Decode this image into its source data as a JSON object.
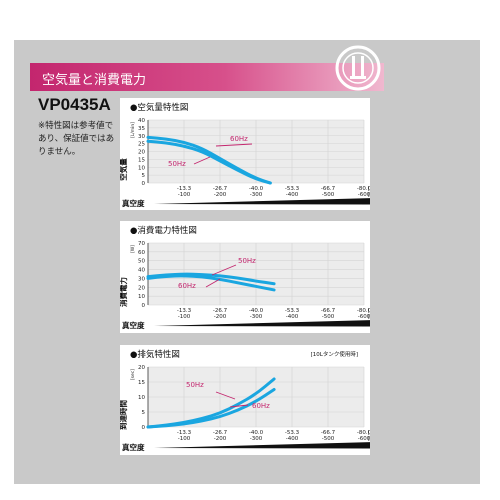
{
  "banner": {
    "title": "空気量と消費電力"
  },
  "model": "VP0435A",
  "note": "※特性図は参考値であり、保証値ではありません。",
  "colors": {
    "curve": "#1aa6e0",
    "callout": "#c3266e",
    "panel_bg": "#c9c9c9",
    "grid": "#cfcfcf"
  },
  "chart_data": [
    {
      "type": "line",
      "title": "●空気量特性図",
      "ylabel": "空気量",
      "yunit": "[L/min]",
      "xlabel": "真空度",
      "ylim": [
        0,
        40
      ],
      "yticks": [
        0,
        5,
        10,
        15,
        20,
        25,
        30,
        35,
        40
      ],
      "xlim": [
        0,
        -80
      ],
      "xticks_kpa": [
        "-13.3",
        "-26.7",
        "-40.0",
        "-53.3",
        "-66.7",
        "-80.0"
      ],
      "xticks_mmhg": [
        "-100",
        "-200",
        "-300",
        "-400",
        "-500",
        "-600"
      ],
      "xunit_kpa": "[kPa]",
      "xunit_mmhg": "[mmHg]",
      "grid": true,
      "series": [
        {
          "name": "60Hz",
          "x": [
            0,
            -6.7,
            -13.3,
            -20,
            -26.7,
            -33.3,
            -40,
            -45.3
          ],
          "y": [
            29,
            28,
            26,
            22,
            15.5,
            9,
            3,
            0
          ]
        },
        {
          "name": "50Hz",
          "x": [
            0,
            -6.7,
            -13.3,
            -20,
            -26.7,
            -33.3,
            -40,
            -45.3
          ],
          "y": [
            26.5,
            25.5,
            23.5,
            20,
            14,
            8,
            2.5,
            0
          ]
        }
      ]
    },
    {
      "type": "line",
      "title": "●消費電力特性図",
      "ylabel": "消費電力",
      "yunit": "[W]",
      "xlabel": "真空度",
      "ylim": [
        0,
        70
      ],
      "yticks": [
        0,
        10,
        20,
        30,
        40,
        50,
        60,
        70
      ],
      "xlim": [
        0,
        -80
      ],
      "xticks_kpa": [
        "-13.3",
        "-26.7",
        "-40.0",
        "-53.3",
        "-66.7",
        "-80.0"
      ],
      "xticks_mmhg": [
        "-100",
        "-200",
        "-300",
        "-400",
        "-500",
        "-600"
      ],
      "xunit_kpa": "[kPa]",
      "xunit_mmhg": "[mmHg]",
      "grid": true,
      "series": [
        {
          "name": "50Hz",
          "x": [
            0,
            -6.7,
            -13.3,
            -20,
            -26.7,
            -33.3,
            -40,
            -46.7
          ],
          "y": [
            32,
            34,
            35,
            34.5,
            33,
            30.5,
            27,
            24
          ]
        },
        {
          "name": "60Hz",
          "x": [
            0,
            -6.7,
            -13.3,
            -20,
            -26.7,
            -33.3,
            -40,
            -46.7
          ],
          "y": [
            30,
            32.5,
            33,
            32,
            29,
            25,
            21,
            17
          ]
        }
      ]
    },
    {
      "type": "line",
      "title": "●排気特性図",
      "subtitle": "[10Lタンク使用時]",
      "ylabel": "到達時間",
      "yunit": "[sec]",
      "xlabel": "真空度",
      "ylim": [
        0,
        20
      ],
      "yticks": [
        0,
        5,
        10,
        15,
        20
      ],
      "xlim": [
        0,
        -80
      ],
      "xticks_kpa": [
        "-13.3",
        "-26.7",
        "-40.0",
        "-53.3",
        "-66.7",
        "-80.0"
      ],
      "xticks_mmhg": [
        "-100",
        "-200",
        "-300",
        "-400",
        "-500",
        "-600"
      ],
      "xunit_kpa": "[kPa]",
      "xunit_mmhg": "[mmHg]",
      "grid": true,
      "series": [
        {
          "name": "50Hz",
          "x": [
            0,
            -6.7,
            -13.3,
            -20,
            -26.7,
            -33.3,
            -40,
            -46.7
          ],
          "y": [
            0,
            0.6,
            1.5,
            2.8,
            4.6,
            7.5,
            11,
            16
          ]
        },
        {
          "name": "60Hz",
          "x": [
            0,
            -6.7,
            -13.3,
            -20,
            -26.7,
            -33.3,
            -40,
            -46.7
          ],
          "y": [
            0,
            0.4,
            1,
            2,
            3.4,
            5.6,
            8.5,
            12.5
          ]
        }
      ]
    }
  ]
}
